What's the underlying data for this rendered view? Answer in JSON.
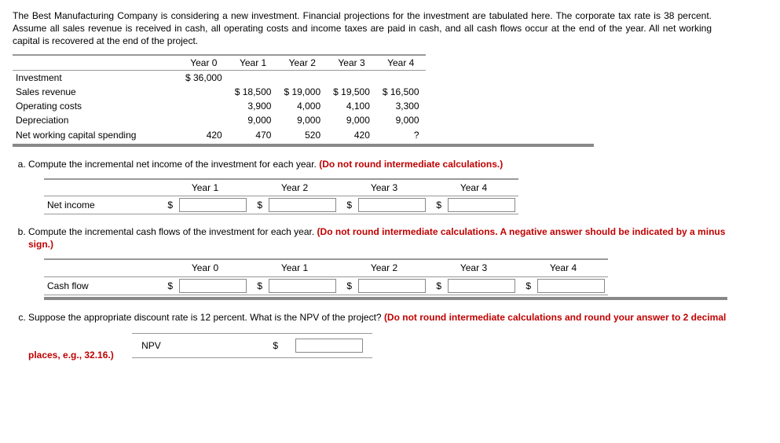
{
  "intro": "The Best Manufacturing Company is considering a new investment. Financial projections for the investment are tabulated here. The corporate tax rate is 38 percent. Assume all sales revenue is received in cash, all operating costs and income taxes are paid in cash, and all cash flows occur at the end of the year. All net working capital is recovered at the end of the project.",
  "proj": {
    "headers": [
      "Year 0",
      "Year 1",
      "Year 2",
      "Year 3",
      "Year 4"
    ],
    "rows": [
      {
        "label": "Investment",
        "y0": "$   36,000",
        "y1": "",
        "y2": "",
        "y3": "",
        "y4": ""
      },
      {
        "label": "Sales revenue",
        "y0": "",
        "y1": "$   18,500",
        "y2": "$   19,000",
        "y3": "$   19,500",
        "y4": "$   16,500"
      },
      {
        "label": "Operating costs",
        "y0": "",
        "y1": "3,900",
        "y2": "4,000",
        "y3": "4,100",
        "y4": "3,300"
      },
      {
        "label": "Depreciation",
        "y0": "",
        "y1": "9,000",
        "y2": "9,000",
        "y3": "9,000",
        "y4": "9,000"
      },
      {
        "label": "Net working capital spending",
        "y0": "420",
        "y1": "470",
        "y2": "520",
        "y3": "420",
        "y4": "?"
      }
    ]
  },
  "a": {
    "q": "Compute the incremental net income of the investment for each year. ",
    "note": "(Do not round intermediate calculations.)",
    "cols": [
      "Year 1",
      "Year 2",
      "Year 3",
      "Year 4"
    ],
    "row": "Net income"
  },
  "b": {
    "q": "Compute the incremental cash flows of the investment for each year. ",
    "note": "(Do not round intermediate calculations. A negative answer should be indicated by a minus sign.)",
    "cols": [
      "Year 0",
      "Year 1",
      "Year 2",
      "Year 3",
      "Year 4"
    ],
    "row": "Cash flow"
  },
  "c": {
    "q": "Suppose the appropriate discount rate is 12 percent. What is the NPV of the project? ",
    "note": "(Do not round intermediate calculations and round your answer to 2 decimal places, e.g., 32.16.)",
    "row": "NPV"
  }
}
